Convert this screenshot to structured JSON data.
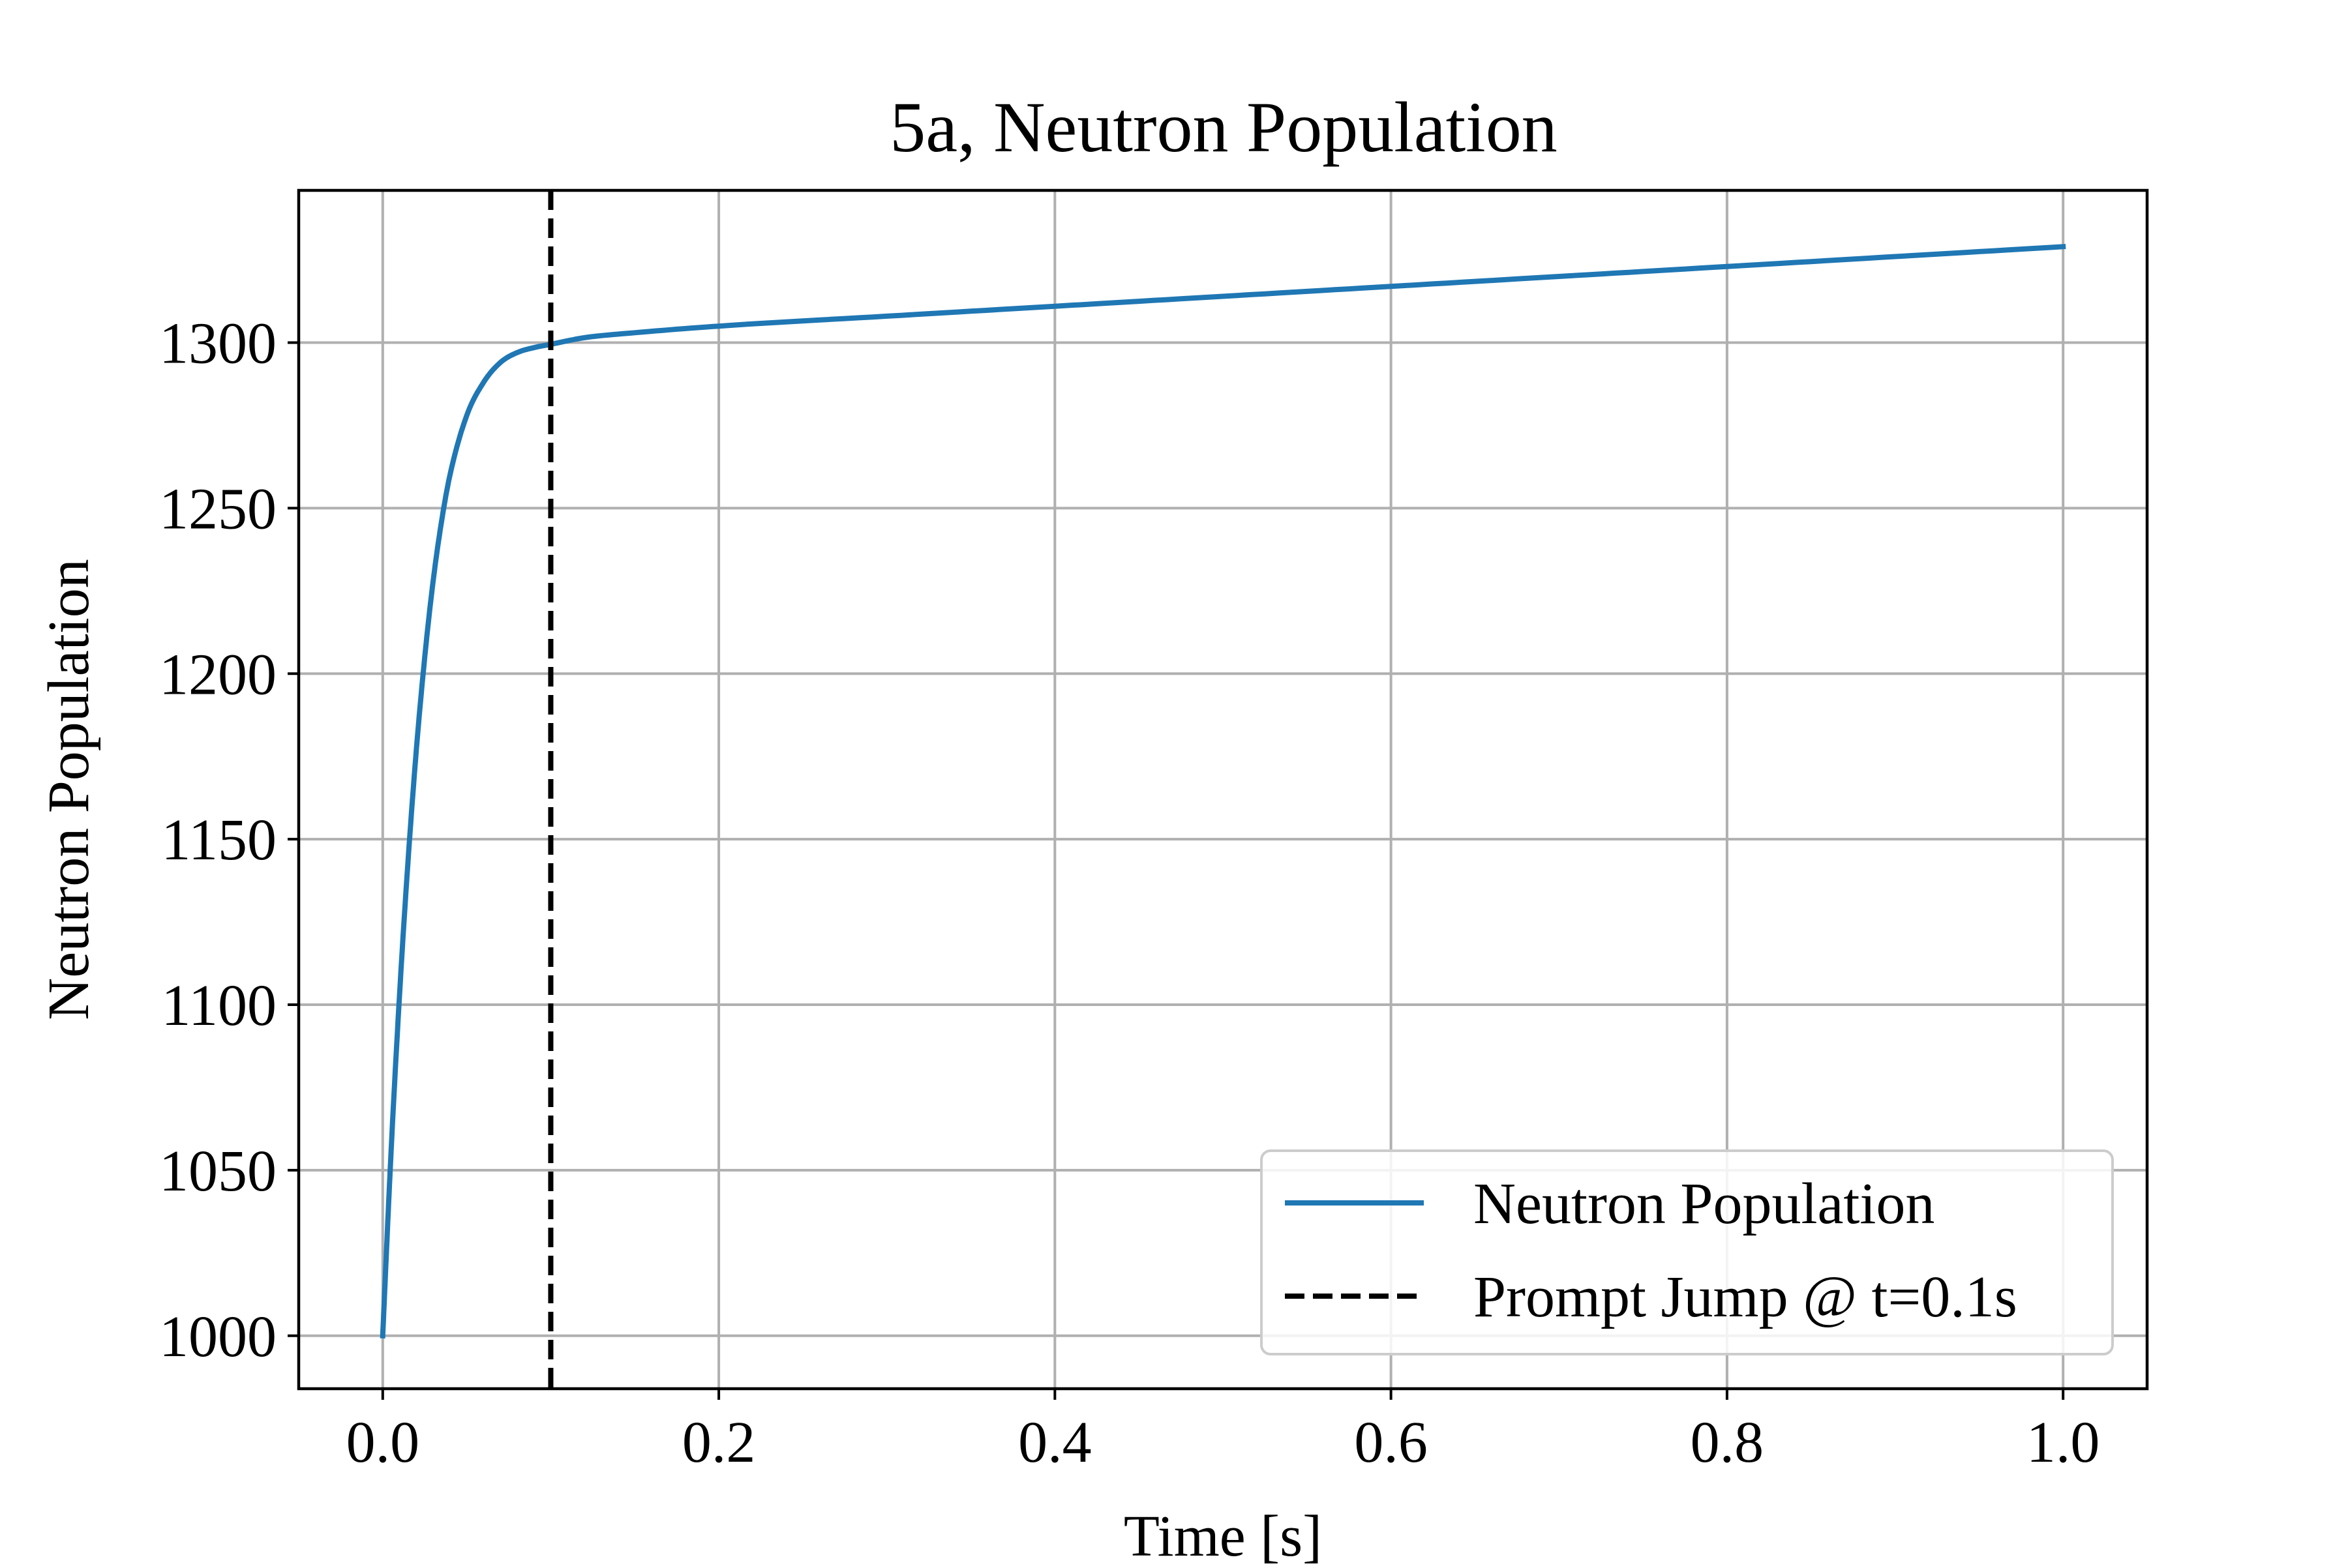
{
  "chart_data": {
    "type": "line",
    "title": "5a, Neutron Population",
    "xlabel": "Time [s]",
    "ylabel": "Neutron Population",
    "xlim": [
      -0.05,
      1.05
    ],
    "ylim": [
      984,
      1346
    ],
    "x_ticks": [
      0.0,
      0.2,
      0.4,
      0.6,
      0.8,
      1.0
    ],
    "x_tick_labels": [
      "0.0",
      "0.2",
      "0.4",
      "0.6",
      "0.8",
      "1.0"
    ],
    "y_ticks": [
      1000,
      1050,
      1100,
      1150,
      1200,
      1250,
      1300
    ],
    "y_tick_labels": [
      "1000",
      "1050",
      "1100",
      "1150",
      "1200",
      "1250",
      "1300"
    ],
    "grid": true,
    "legend_position": "lower right",
    "series": [
      {
        "name": "Neutron Population",
        "color": "#1f77b4",
        "style": "solid",
        "x": [
          0.0,
          0.002,
          0.005,
          0.01,
          0.015,
          0.02,
          0.025,
          0.03,
          0.035,
          0.04,
          0.05,
          0.06,
          0.07,
          0.08,
          0.09,
          0.1,
          0.12,
          0.15,
          0.2,
          0.3,
          0.4,
          0.5,
          0.6,
          0.7,
          0.8,
          0.9,
          1.0
        ],
        "y": [
          1000,
          1023,
          1056,
          1103,
          1143,
          1177,
          1205,
          1228,
          1246,
          1260,
          1278,
          1288,
          1294,
          1297,
          1298.5,
          1299.5,
          1301.5,
          1303,
          1305,
          1308,
          1311,
          1314,
          1317,
          1320,
          1323,
          1326,
          1329
        ]
      }
    ],
    "vlines": [
      {
        "name": "Prompt Jump @ t=0.1s",
        "x": 0.1,
        "color": "#000000",
        "style": "dashed"
      }
    ],
    "legend": [
      {
        "label": "Neutron Population",
        "color": "#1f77b4",
        "style": "solid"
      },
      {
        "label": "Prompt Jump @ t=0.1s",
        "color": "#000000",
        "style": "dashed"
      }
    ]
  }
}
